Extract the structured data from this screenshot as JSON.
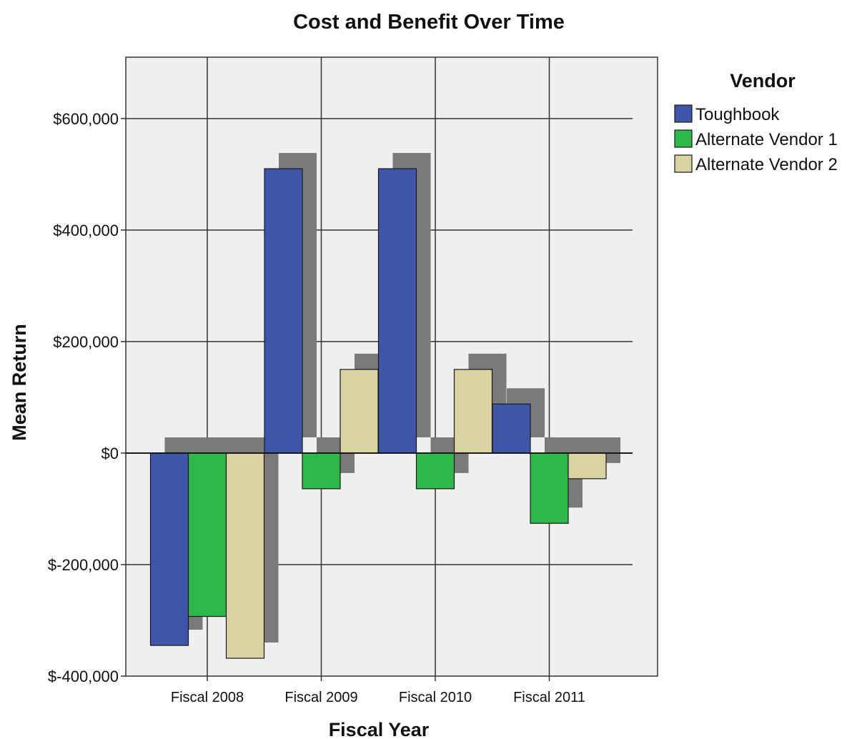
{
  "chart_data": {
    "type": "bar",
    "title": "Cost and Benefit Over Time",
    "xlabel": "Fiscal Year",
    "ylabel": "Mean Return",
    "categories": [
      "Fiscal 2008",
      "Fiscal 2009",
      "Fiscal 2010",
      "Fiscal 2011"
    ],
    "series": [
      {
        "name": "Toughbook",
        "color": "#3F55A8",
        "values": [
          -345000,
          510000,
          510000,
          88000
        ]
      },
      {
        "name": "Alternate Vendor 1",
        "color": "#2DB84A",
        "values": [
          -293000,
          -64000,
          -64000,
          -126000
        ]
      },
      {
        "name": "Alternate Vendor 2",
        "color": "#D8D3A0",
        "values": [
          -368000,
          150000,
          150000,
          -46000
        ]
      }
    ],
    "ylim": [
      -400000,
      710000
    ],
    "yticks": [
      -400000,
      -200000,
      0,
      200000,
      400000,
      600000
    ],
    "ytick_labels": [
      "$-400,000",
      "$-200,000",
      "$0",
      "$200,000",
      "$400,000",
      "$600,000"
    ],
    "legend": {
      "title": "Vendor",
      "position": "right"
    },
    "grid": true,
    "shadow": true
  },
  "colors": {
    "plot_background": "#EFEFEF",
    "shadow": "#7A7A7A",
    "gridline": "#333333"
  }
}
